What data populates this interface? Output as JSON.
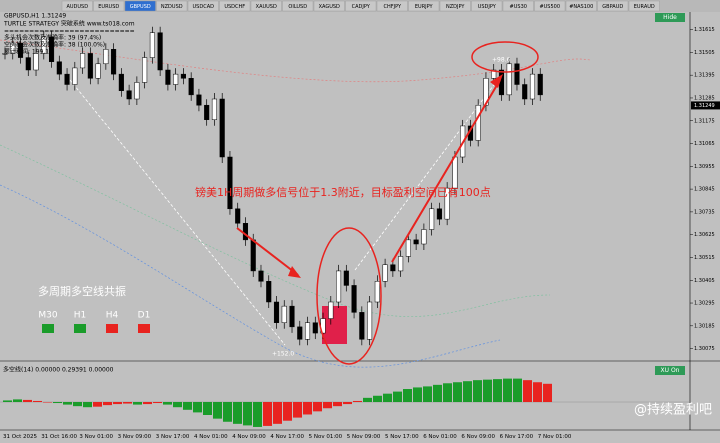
{
  "tabs": [
    "AUDUSD",
    "EURUSD",
    "GBPUSD",
    "NZDUSD",
    "USDCAD",
    "USDCHF",
    "XAUUSD",
    "OILUSD",
    "XAGUSD",
    "CADJPY",
    "CHFJPY",
    "EURJPY",
    "NZDJPY",
    "USDJPY",
    "#US30",
    "#US500",
    "#NAS100",
    "GBPAUD",
    "EURAUD"
  ],
  "active_tab": "GBPUSD",
  "header": {
    "symbol": "GBPUSD,H1 1.31249",
    "strategy": "TURTLE STRATEGY 突破系统 www.ts018.com",
    "separator": "==========================",
    "stats": [
      "多头机会次数及准确率: 39 (97.4%)",
      "空头机会次数及准确率: 38 (100.0%)",
      "累计利润: 199.1"
    ]
  },
  "hide_button": "Hide",
  "price_axis": {
    "ylim": [
      1.3002,
      1.317
    ],
    "ticks": [
      1.31615,
      1.31505,
      1.31395,
      1.31285,
      1.31175,
      1.31065,
      1.30955,
      1.30845,
      1.30735,
      1.30625,
      1.30515,
      1.30405,
      1.30295,
      1.30185,
      1.30075
    ],
    "current": {
      "value": 1.31249,
      "label": "1.31249"
    }
  },
  "candles": {
    "closes": [
      1.315,
      1.3155,
      1.3148,
      1.3142,
      1.315,
      1.3158,
      1.3146,
      1.314,
      1.3135,
      1.3143,
      1.315,
      1.3138,
      1.3145,
      1.3152,
      1.314,
      1.3132,
      1.3128,
      1.3136,
      1.3148,
      1.316,
      1.3142,
      1.3135,
      1.314,
      1.3138,
      1.313,
      1.3125,
      1.3118,
      1.3128,
      1.31,
      1.3075,
      1.3068,
      1.306,
      1.3045,
      1.304,
      1.303,
      1.302,
      1.3028,
      1.3018,
      1.3012,
      1.302,
      1.3015,
      1.3022,
      1.303,
      1.3045,
      1.3038,
      1.3025,
      1.3012,
      1.303,
      1.304,
      1.3048,
      1.3045,
      1.3052,
      1.306,
      1.3058,
      1.3065,
      1.3075,
      1.307,
      1.3085,
      1.31,
      1.3115,
      1.3108,
      1.3125,
      1.3138,
      1.3142,
      1.313,
      1.3145,
      1.3135,
      1.3128,
      1.314,
      1.313
    ],
    "up_color": "#ffffff",
    "down_color": "#000000"
  },
  "annotation": "镑美1H周期做多信号位于1.3附近，目标盈利空间已有100点",
  "targets": [
    "+98.6",
    "+152.0"
  ],
  "resonance": {
    "title": "多周期多空线共振",
    "periods": [
      {
        "label": "M30",
        "color": "#1a9c2a"
      },
      {
        "label": "H1",
        "color": "#1a9c2a"
      },
      {
        "label": "H4",
        "color": "#e8231f"
      },
      {
        "label": "D1",
        "color": "#e8231f"
      }
    ]
  },
  "indicator": {
    "label": "多空线(14) 0.00000 0.29391 0.00000",
    "badge": "XU On",
    "ylim": [
      -0.5,
      0.5
    ],
    "rising_color": "#1a9c2a",
    "falling_color": "#e8231f",
    "values": [
      0.03,
      0.05,
      0.04,
      0.02,
      0.0,
      -0.02,
      -0.05,
      -0.08,
      -0.1,
      -0.09,
      -0.06,
      -0.04,
      -0.03,
      -0.05,
      -0.04,
      -0.02,
      -0.05,
      -0.1,
      -0.15,
      -0.2,
      -0.25,
      -0.32,
      -0.38,
      -0.42,
      -0.45,
      -0.48,
      -0.46,
      -0.42,
      -0.36,
      -0.3,
      -0.24,
      -0.18,
      -0.12,
      -0.08,
      -0.04,
      0.02,
      0.08,
      0.12,
      0.16,
      0.2,
      0.25,
      0.28,
      0.3,
      0.33,
      0.36,
      0.38,
      0.4,
      0.42,
      0.43,
      0.44,
      0.45,
      0.45,
      0.42,
      0.38,
      0.35
    ]
  },
  "time_axis": [
    "31 Oct 2025",
    "31 Oct 16:00",
    "3 Nov 01:00",
    "3 Nov 09:00",
    "3 Nov 17:00",
    "4 Nov 01:00",
    "4 Nov 09:00",
    "4 Nov 17:00",
    "5 Nov 01:00",
    "5 Nov 09:00",
    "5 Nov 17:00",
    "6 Nov 01:00",
    "6 Nov 09:00",
    "6 Nov 17:00",
    "7 Nov 01:00"
  ],
  "watermark": "@持续盈利吧"
}
